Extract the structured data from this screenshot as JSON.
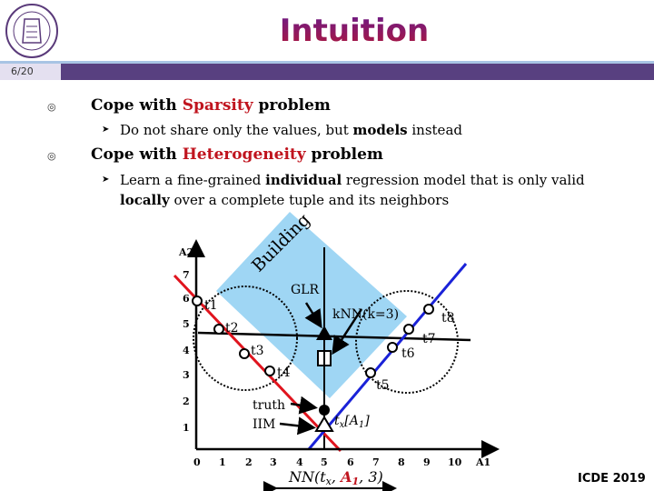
{
  "header": {
    "title": "Intuition",
    "page": "6/20",
    "logo_text": "TSINGHUA UNIVERSITY 1911"
  },
  "bullets": [
    {
      "pre": "Cope with ",
      "highlight": "Sparsity",
      "post": " problem",
      "sub": {
        "a": "Do not share only the values, but ",
        "b": "models",
        "c": " instead"
      }
    },
    {
      "pre": "Cope with ",
      "highlight": "Heterogeneity",
      "post": " problem",
      "sub": {
        "a": "Learn a fine-grained ",
        "b": "individual",
        "c": " regression model that is only valid",
        "d": "locally",
        "e": " over a complete tuple and its neighbors"
      }
    }
  ],
  "diagram": {
    "region_label": "Building",
    "x_ticks": [
      "0",
      "1",
      "2",
      "3",
      "4",
      "5",
      "6",
      "7",
      "8",
      "9",
      "10"
    ],
    "x_label": "A1",
    "y_ticks": [
      "1",
      "2",
      "3",
      "4",
      "5",
      "6",
      "7"
    ],
    "y_label": "A2",
    "points": [
      "t1",
      "t2",
      "t3",
      "t4",
      "t5",
      "t6",
      "t7",
      "t8"
    ],
    "glr": "GLR",
    "knn": "kNN(k=3)",
    "truth": "truth",
    "iim": "IIM",
    "tx": "t",
    "tx_sub": "x",
    "tx_attr": "[A",
    "tx_attr_sub": "1",
    "tx_close": "]",
    "nn": {
      "a": "NN(t",
      "sub": "x",
      "b": ", ",
      "c": "A",
      "c_sub": "1",
      "d": ", 3)"
    },
    "colors": {
      "region": "#9fd6f4",
      "red_line": "#e0141e",
      "blue_line": "#1a22d8"
    }
  },
  "footer": {
    "venue": "ICDE 2019"
  }
}
